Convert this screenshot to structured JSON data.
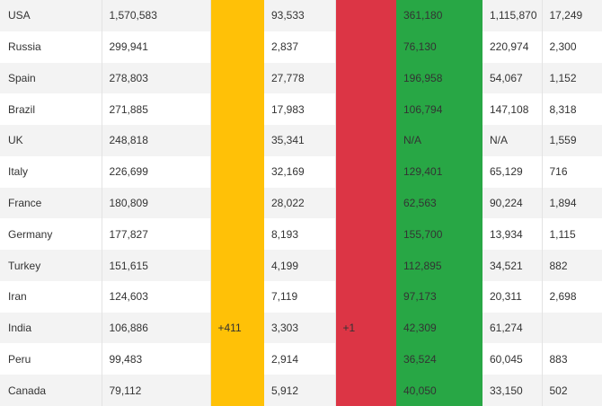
{
  "table": {
    "rows": [
      {
        "country": "USA",
        "total_cases": "1,570,583",
        "new_cases": "",
        "total_deaths": "93,533",
        "new_deaths": "",
        "recovered": "361,180",
        "active": "1,115,870",
        "serious": "17,249"
      },
      {
        "country": "Russia",
        "total_cases": "299,941",
        "new_cases": "",
        "total_deaths": "2,837",
        "new_deaths": "",
        "recovered": "76,130",
        "active": "220,974",
        "serious": "2,300"
      },
      {
        "country": "Spain",
        "total_cases": "278,803",
        "new_cases": "",
        "total_deaths": "27,778",
        "new_deaths": "",
        "recovered": "196,958",
        "active": "54,067",
        "serious": "1,152"
      },
      {
        "country": "Brazil",
        "total_cases": "271,885",
        "new_cases": "",
        "total_deaths": "17,983",
        "new_deaths": "",
        "recovered": "106,794",
        "active": "147,108",
        "serious": "8,318"
      },
      {
        "country": "UK",
        "total_cases": "248,818",
        "new_cases": "",
        "total_deaths": "35,341",
        "new_deaths": "",
        "recovered": "N/A",
        "active": "N/A",
        "serious": "1,559"
      },
      {
        "country": "Italy",
        "total_cases": "226,699",
        "new_cases": "",
        "total_deaths": "32,169",
        "new_deaths": "",
        "recovered": "129,401",
        "active": "65,129",
        "serious": "716"
      },
      {
        "country": "France",
        "total_cases": "180,809",
        "new_cases": "",
        "total_deaths": "28,022",
        "new_deaths": "",
        "recovered": "62,563",
        "active": "90,224",
        "serious": "1,894"
      },
      {
        "country": "Germany",
        "total_cases": "177,827",
        "new_cases": "",
        "total_deaths": "8,193",
        "new_deaths": "",
        "recovered": "155,700",
        "active": "13,934",
        "serious": "1,115"
      },
      {
        "country": "Turkey",
        "total_cases": "151,615",
        "new_cases": "",
        "total_deaths": "4,199",
        "new_deaths": "",
        "recovered": "112,895",
        "active": "34,521",
        "serious": "882"
      },
      {
        "country": "Iran",
        "total_cases": "124,603",
        "new_cases": "",
        "total_deaths": "7,119",
        "new_deaths": "",
        "recovered": "97,173",
        "active": "20,311",
        "serious": "2,698"
      },
      {
        "country": "India",
        "total_cases": "106,886",
        "new_cases": "+411",
        "total_deaths": "3,303",
        "new_deaths": "+1",
        "recovered": "42,309",
        "active": "61,274",
        "serious": ""
      },
      {
        "country": "Peru",
        "total_cases": "99,483",
        "new_cases": "",
        "total_deaths": "2,914",
        "new_deaths": "",
        "recovered": "36,524",
        "active": "60,045",
        "serious": "883"
      },
      {
        "country": "Canada",
        "total_cases": "79,112",
        "new_cases": "",
        "total_deaths": "5,912",
        "new_deaths": "",
        "recovered": "40,050",
        "active": "33,150",
        "serious": "502"
      }
    ]
  },
  "colors": {
    "new_cases_highlight": "#ffc107",
    "new_deaths_highlight": "#dc3545",
    "recovered_highlight": "#28a745",
    "row_stripe": "#f3f3f3"
  }
}
